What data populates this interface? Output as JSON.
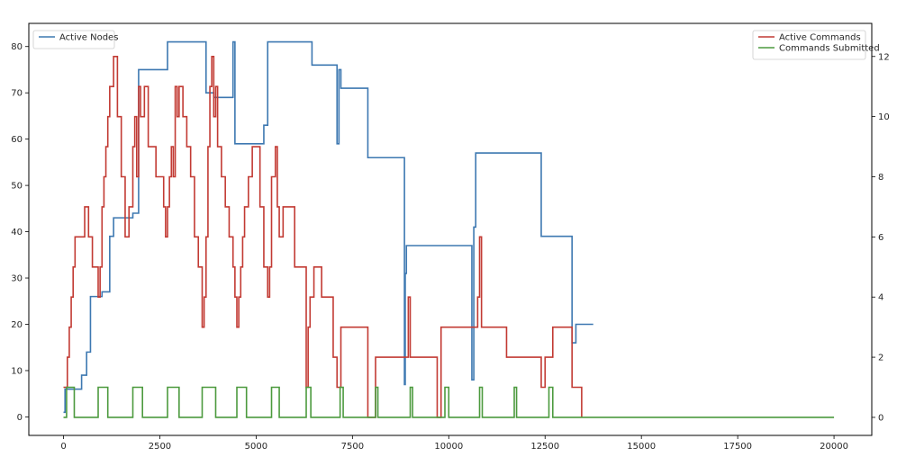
{
  "chart_data": {
    "type": "line",
    "title": "",
    "xlabel": "",
    "ylabel_left": "",
    "ylabel_right": "",
    "xlim": [
      -900,
      20980
    ],
    "ylim_left": [
      -4,
      85
    ],
    "ylim_right": [
      -0.6,
      13.1
    ],
    "x_ticks": [
      0,
      2500,
      5000,
      7500,
      10000,
      12500,
      15000,
      17500,
      20000
    ],
    "x_tick_labels": [
      "0",
      "2500",
      "5000",
      "7500",
      "10000",
      "12500",
      "15000",
      "17500",
      "20000"
    ],
    "y_left_ticks": [
      0,
      10,
      20,
      30,
      40,
      50,
      60,
      70,
      80
    ],
    "y_left_tick_labels": [
      "0",
      "10",
      "20",
      "30",
      "40",
      "50",
      "60",
      "70",
      "80"
    ],
    "y_right_ticks": [
      0,
      2,
      4,
      6,
      8,
      10,
      12
    ],
    "y_right_tick_labels": [
      "0",
      "2",
      "4",
      "6",
      "8",
      "10",
      "12"
    ],
    "grid": false,
    "legends": [
      {
        "placement": "top-left",
        "entries": [
          {
            "series_index": 0,
            "label": "Active Nodes"
          }
        ]
      },
      {
        "placement": "top-right",
        "entries": [
          {
            "series_index": 1,
            "label": "Active Commands"
          },
          {
            "series_index": 2,
            "label": "Commands Submitted"
          }
        ]
      }
    ],
    "series": [
      {
        "name": "Active Nodes",
        "axis": "left",
        "color": "#3d78b1",
        "step": true,
        "x": [
          0,
          40,
          470,
          600,
          700,
          760,
          1000,
          1200,
          1300,
          1800,
          1950,
          2700,
          2900,
          3700,
          3900,
          4200,
          4400,
          4450,
          4500,
          5200,
          5300,
          6450,
          7100,
          7150,
          7200,
          7900,
          8850,
          8870,
          8900,
          9000,
          10600,
          10650,
          10700,
          12400,
          13200,
          13300,
          13750
        ],
        "y": [
          1,
          6,
          9,
          14,
          26,
          26,
          27,
          39,
          43,
          44,
          75,
          81,
          81,
          70,
          69,
          69,
          81,
          59,
          59,
          63,
          81,
          76,
          59,
          75,
          71,
          56,
          7,
          31,
          37,
          37,
          8,
          41,
          57,
          39,
          16,
          20,
          20
        ]
      },
      {
        "name": "Active Commands",
        "axis": "right",
        "color": "#c23a33",
        "step": true,
        "x": [
          0,
          100,
          150,
          200,
          250,
          300,
          550,
          650,
          750,
          900,
          950,
          1000,
          1050,
          1100,
          1150,
          1200,
          1300,
          1400,
          1500,
          1600,
          1700,
          1800,
          1850,
          1900,
          1950,
          2000,
          2100,
          2200,
          2400,
          2600,
          2650,
          2700,
          2750,
          2800,
          2850,
          2900,
          2950,
          3000,
          3100,
          3200,
          3300,
          3400,
          3500,
          3600,
          3650,
          3700,
          3750,
          3800,
          3850,
          3900,
          3950,
          4000,
          4100,
          4200,
          4300,
          4400,
          4450,
          4500,
          4550,
          4600,
          4650,
          4700,
          4800,
          4900,
          5100,
          5200,
          5300,
          5350,
          5400,
          5500,
          5550,
          5600,
          5700,
          6000,
          6300,
          6350,
          6400,
          6500,
          6700,
          7000,
          7100,
          7200,
          7300,
          7900,
          8100,
          8300,
          8900,
          8950,
          9000,
          9050,
          9700,
          9800,
          10000,
          10700,
          10750,
          10800,
          10850,
          10900,
          11500,
          11700,
          12400,
          12500,
          12700,
          12800,
          13200,
          13350,
          13450
        ],
        "y": [
          1,
          2,
          3,
          4,
          5,
          6,
          7,
          6,
          5,
          4,
          5,
          7,
          8,
          9,
          10,
          11,
          12,
          10,
          8,
          6,
          7,
          9,
          10,
          8,
          11,
          10,
          11,
          9,
          8,
          7,
          6,
          7,
          8,
          9,
          8,
          11,
          10,
          11,
          10,
          9,
          8,
          6,
          5,
          3,
          4,
          6,
          9,
          11,
          12,
          10,
          11,
          9,
          8,
          7,
          6,
          5,
          4,
          3,
          4,
          5,
          6,
          7,
          8,
          9,
          7,
          5,
          4,
          5,
          8,
          9,
          7,
          6,
          7,
          5,
          1,
          3,
          4,
          5,
          4,
          2,
          1,
          3,
          3,
          0,
          2,
          2,
          2,
          4,
          2,
          2,
          0,
          3,
          3,
          3,
          4,
          6,
          3,
          3,
          2,
          2,
          1,
          2,
          3,
          3,
          1,
          1,
          0
        ]
      },
      {
        "name": "Commands Submitted",
        "axis": "right",
        "color": "#4c9a3e",
        "step": true,
        "x": [
          0,
          80,
          280,
          900,
          1150,
          1800,
          2050,
          2700,
          3000,
          3600,
          3950,
          4500,
          4750,
          5400,
          5600,
          6300,
          6420,
          7180,
          7260,
          8100,
          8160,
          9000,
          9060,
          9900,
          10000,
          10800,
          10870,
          11700,
          11760,
          12600,
          12700,
          20000
        ],
        "y": [
          0,
          1,
          0,
          1,
          0,
          1,
          0,
          1,
          0,
          1,
          0,
          1,
          0,
          1,
          0,
          1,
          0,
          1,
          0,
          1,
          0,
          1,
          0,
          1,
          0,
          1,
          0,
          1,
          0,
          1,
          0,
          0
        ]
      }
    ]
  }
}
